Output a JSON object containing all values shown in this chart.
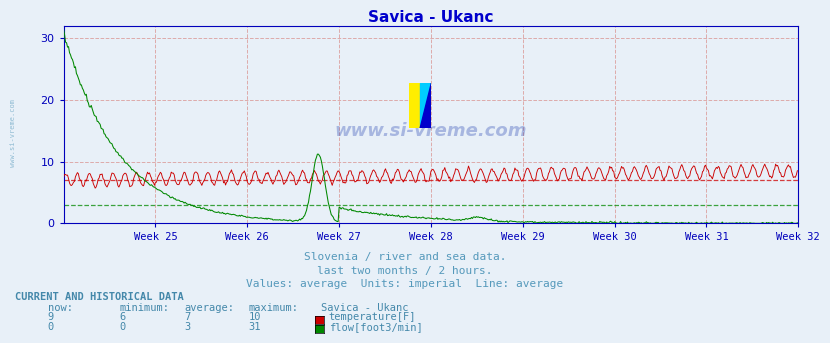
{
  "title": "Savica - Ukanc",
  "bg_color": "#e8f0f8",
  "plot_bg_color": "#e8f0f8",
  "ylim": [
    0,
    32
  ],
  "yticks": [
    0,
    10,
    20,
    30
  ],
  "n_points": 744,
  "week_positions": [
    0,
    93,
    186,
    279,
    372,
    465,
    558,
    651,
    744
  ],
  "week_labels": [
    "Week 25",
    "Week 26",
    "Week 27",
    "Week 28",
    "Week 29",
    "Week 30",
    "Week 31",
    "Week 32"
  ],
  "temp_color": "#cc0000",
  "temp_avg": 7,
  "temp_avg_color": "#cc0000",
  "flow_color": "#008800",
  "flow_avg": 3,
  "flow_avg_color": "#008800",
  "grid_v_color": "#ddaaaa",
  "grid_h_color": "#ddaaaa",
  "subtitle_color": "#5599bb",
  "table_color": "#4488aa",
  "border_color": "#0000bb",
  "tick_color": "#0000bb",
  "title_color": "#0000cc",
  "subtitle1": "Slovenia / river and sea data.",
  "subtitle2": "last two months / 2 hours.",
  "subtitle3": "Values: average  Units: imperial  Line: average",
  "table_header": "CURRENT AND HISTORICAL DATA",
  "col_headers": [
    "now:",
    "minimum:",
    "average:",
    "maximum:",
    "Savica - Ukanc"
  ],
  "temp_row": [
    "9",
    "6",
    "7",
    "10"
  ],
  "flow_row": [
    "0",
    "0",
    "3",
    "31"
  ],
  "temp_label": "temperature[F]",
  "flow_label": "flow[foot3/min]",
  "temp_box_color": "#cc0000",
  "flow_box_color": "#008800"
}
